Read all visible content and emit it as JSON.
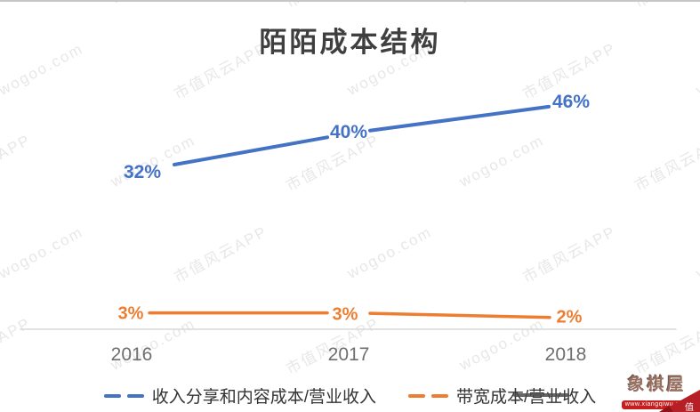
{
  "watermark": {
    "texts": [
      "市值风云APP",
      "wogoo.com"
    ]
  },
  "chart_data": {
    "type": "line",
    "title": "陌陌成本结构",
    "categories": [
      "2016",
      "2017",
      "2018"
    ],
    "series": [
      {
        "name": "收入分享和内容成本/营业收入",
        "color": "#4472C4",
        "values": [
          0.32,
          0.4,
          0.46
        ],
        "labels": [
          "32%",
          "40%",
          "46%"
        ]
      },
      {
        "name": "带宽成本/营业收入",
        "color": "#ED7D31",
        "values": [
          0.03,
          0.03,
          0.02
        ],
        "labels": [
          "3%",
          "3%",
          "2%"
        ]
      }
    ],
    "xlabel": "",
    "ylabel": "",
    "ylim": [
      0,
      0.5
    ],
    "grid": false,
    "legend_position": "bottom",
    "axis_line_color": "#d9d9d9"
  },
  "logo": {
    "name": "象棋屋",
    "url_text": "www.xiangqiwu.com",
    "ribbon_char": "值"
  }
}
